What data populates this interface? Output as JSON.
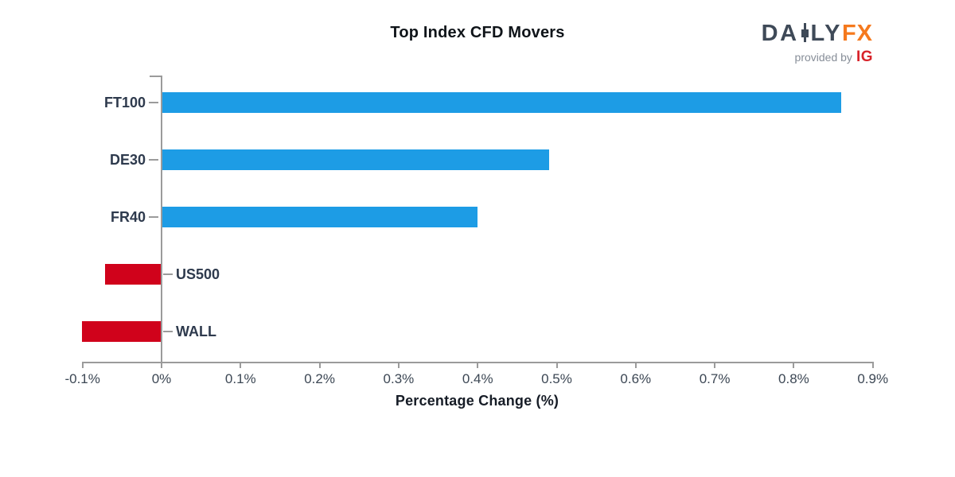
{
  "header": {
    "title": "Top Index CFD Movers"
  },
  "logo": {
    "part1": "DA",
    "part2": "LY",
    "part3": "FX",
    "tagline": "provided by",
    "provider": "IG"
  },
  "chart_data": {
    "type": "bar",
    "orientation": "horizontal",
    "title": "Top Index CFD Movers",
    "categories": [
      "FT100",
      "DE30",
      "FR40",
      "US500",
      "WALL"
    ],
    "values": [
      0.86,
      0.49,
      0.4,
      -0.07,
      -0.1
    ],
    "xlabel": "Percentage Change (%)",
    "ylabel": "",
    "xlim": [
      -0.1,
      0.9
    ],
    "xticks": [
      "-0.1%",
      "0%",
      "0.1%",
      "0.2%",
      "0.3%",
      "0.4%",
      "0.5%",
      "0.6%",
      "0.7%",
      "0.8%",
      "0.9%"
    ],
    "xtick_values": [
      -0.1,
      0,
      0.1,
      0.2,
      0.3,
      0.4,
      0.5,
      0.6,
      0.7,
      0.8,
      0.9
    ],
    "grid": false,
    "legend": false,
    "positive_color": "#1d9ce5",
    "negative_color": "#d0021b",
    "axis_color": "#9b9b9b",
    "label_color": "#2e3a4d",
    "tick_label_color": "#3c4754"
  },
  "brand_colors": {
    "logo_slate": "#3f4a58",
    "logo_orange": "#f5791d",
    "logo_gray": "#878e98",
    "ig_red": "#d8232a"
  }
}
